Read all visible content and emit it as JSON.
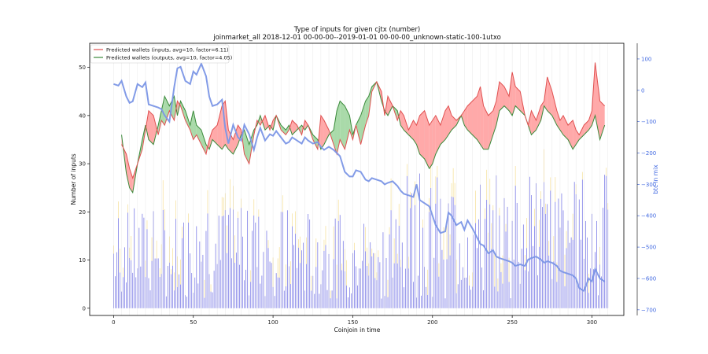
{
  "chart_data": {
    "type": "line",
    "title": "Type of inputs for given cjtx (number)",
    "subtitle": "joinmarket_all 2018-12-01 00-00-00--2019-01-01 00-00-00_unknown-static-100-1utxo",
    "xlabel": "Coinjoin in time",
    "ylabel": "Number of inputs",
    "y2label": "btc in mix",
    "xlim": [
      -15,
      320
    ],
    "ylim": [
      -1.5,
      55
    ],
    "y2lim": [
      -718,
      150
    ],
    "xticks": [
      "0",
      "50",
      "100",
      "150",
      "200",
      "250",
      "300"
    ],
    "yticks": [
      "0",
      "10",
      "20",
      "30",
      "40",
      "50"
    ],
    "y2ticks": [
      "100",
      "0",
      "−100",
      "−200",
      "−300",
      "−400",
      "−500",
      "−600",
      "−700"
    ],
    "legend_position": "top-left",
    "grid": "vertical lines at coinjoin dates",
    "colors": {
      "inputs_fill": "#ff9a9a",
      "inputs_line": "#e05050",
      "outputs_fill": "#9ad49a",
      "outputs_line": "#3a8a3a",
      "btc_line": "#7b96e6",
      "bars": "#3b3bd9",
      "bars_secondary": "#f3d77a",
      "right_axis": "#4169e1"
    },
    "series": [
      {
        "name": "Predicted wallets (inputs, avg=10, factor=6.11)",
        "x": [
          5,
          8,
          10,
          12,
          15,
          18,
          20,
          22,
          25,
          28,
          30,
          32,
          35,
          38,
          40,
          42,
          45,
          48,
          50,
          52,
          55,
          58,
          60,
          62,
          65,
          68,
          70,
          72,
          75,
          78,
          80,
          82,
          85,
          88,
          90,
          92,
          95,
          98,
          100,
          102,
          105,
          108,
          110,
          112,
          115,
          118,
          120,
          122,
          125,
          128,
          130,
          132,
          135,
          138,
          140,
          142,
          145,
          148,
          150,
          152,
          155,
          158,
          160,
          162,
          165,
          168,
          170,
          172,
          175,
          178,
          180,
          182,
          185,
          188,
          190,
          192,
          195,
          198,
          200,
          202,
          205,
          208,
          210,
          212,
          215,
          218,
          220,
          222,
          225,
          228,
          230,
          232,
          235,
          238,
          240,
          242,
          245,
          248,
          250,
          252,
          255,
          258,
          260,
          262,
          265,
          268,
          270,
          272,
          275,
          278,
          280,
          282,
          285,
          288,
          290,
          292,
          295,
          298,
          300,
          302,
          305,
          308
        ],
        "values": [
          34,
          32,
          29,
          27,
          30,
          33,
          37,
          41,
          40,
          36,
          39,
          38,
          41,
          39,
          43,
          42,
          39,
          37,
          35,
          36,
          34,
          32,
          35,
          37,
          38,
          42,
          43,
          37,
          35,
          38,
          37,
          32,
          30,
          36,
          39,
          38,
          40,
          37,
          39,
          40,
          37,
          36,
          37,
          39,
          38,
          36,
          39,
          38,
          35,
          33,
          40,
          39,
          37,
          34,
          32,
          35,
          33,
          37,
          35,
          38,
          34,
          38,
          40,
          45,
          47,
          45,
          40,
          44,
          42,
          39,
          41,
          40,
          37,
          39,
          38,
          40,
          41,
          38,
          39,
          40,
          38,
          41,
          42,
          40,
          39,
          40,
          41,
          42,
          43,
          44,
          46,
          42,
          40,
          41,
          43,
          47,
          46,
          44,
          49,
          46,
          45,
          40,
          38,
          41,
          39,
          42,
          43,
          48,
          45,
          41,
          39,
          40,
          38,
          39,
          37,
          36,
          38,
          39,
          41,
          51,
          43,
          42
        ]
      },
      {
        "name": "Predicted wallets (outputs, avg=10, factor=4.05)",
        "x": [
          5,
          8,
          10,
          12,
          15,
          18,
          20,
          22,
          25,
          28,
          30,
          32,
          35,
          38,
          40,
          42,
          45,
          48,
          50,
          52,
          55,
          58,
          60,
          62,
          65,
          68,
          70,
          72,
          75,
          78,
          80,
          82,
          85,
          88,
          90,
          92,
          95,
          98,
          100,
          102,
          105,
          108,
          110,
          112,
          115,
          118,
          120,
          122,
          125,
          128,
          130,
          132,
          135,
          138,
          140,
          142,
          145,
          148,
          150,
          152,
          155,
          158,
          160,
          162,
          165,
          168,
          170,
          172,
          175,
          178,
          180,
          182,
          185,
          188,
          190,
          192,
          195,
          198,
          200,
          202,
          205,
          208,
          210,
          212,
          215,
          218,
          220,
          222,
          225,
          228,
          230,
          232,
          235,
          238,
          240,
          242,
          245,
          248,
          250,
          252,
          255,
          258,
          260,
          262,
          265,
          268,
          270,
          272,
          275,
          278,
          280,
          282,
          285,
          288,
          290,
          292,
          295,
          298,
          300,
          302,
          305,
          308
        ],
        "values": [
          36,
          28,
          25,
          24,
          30,
          35,
          38,
          35,
          34,
          38,
          41,
          44,
          42,
          44,
          40,
          43,
          41,
          38,
          41,
          38,
          37,
          34,
          33,
          35,
          34,
          33,
          34,
          33,
          32,
          34,
          36,
          37,
          34,
          37,
          38,
          40,
          37,
          38,
          37,
          40,
          38,
          37,
          38,
          36,
          37,
          38,
          37,
          38,
          36,
          35,
          33,
          34,
          36,
          37,
          41,
          43,
          42,
          40,
          36,
          38,
          40,
          43,
          44,
          46,
          47,
          43,
          41,
          40,
          42,
          41,
          38,
          37,
          36,
          35,
          34,
          32,
          31,
          29,
          30,
          32,
          34,
          35,
          36,
          37,
          38,
          40,
          38,
          37,
          36,
          35,
          34,
          33,
          33,
          36,
          38,
          41,
          42,
          41,
          40,
          42,
          41,
          40,
          38,
          36,
          37,
          39,
          42,
          41,
          40,
          38,
          37,
          36,
          35,
          33,
          34,
          35,
          36,
          37,
          38,
          40,
          35,
          38
        ]
      },
      {
        "name": "btc in mix",
        "axis": "right",
        "x": [
          0,
          3,
          5,
          8,
          10,
          12,
          15,
          18,
          20,
          22,
          25,
          28,
          30,
          32,
          35,
          38,
          40,
          42,
          45,
          48,
          50,
          52,
          55,
          58,
          60,
          62,
          65,
          68,
          70,
          72,
          75,
          78,
          80,
          82,
          85,
          88,
          90,
          92,
          95,
          98,
          100,
          102,
          105,
          108,
          110,
          112,
          115,
          118,
          120,
          122,
          125,
          128,
          130,
          132,
          135,
          138,
          140,
          142,
          145,
          148,
          150,
          152,
          155,
          158,
          160,
          162,
          165,
          168,
          170,
          172,
          175,
          178,
          180,
          182,
          185,
          188,
          190,
          192,
          195,
          198,
          200,
          202,
          205,
          208,
          210,
          212,
          215,
          218,
          220,
          222,
          225,
          228,
          230,
          232,
          235,
          238,
          240,
          242,
          245,
          248,
          250,
          252,
          255,
          258,
          260,
          262,
          265,
          268,
          270,
          272,
          275,
          278,
          280,
          282,
          285,
          288,
          290,
          292,
          295,
          298,
          300,
          302,
          305,
          308
        ],
        "values": [
          20,
          15,
          30,
          -20,
          -40,
          -35,
          20,
          10,
          25,
          -45,
          -50,
          -55,
          -60,
          -80,
          -100,
          10,
          70,
          75,
          30,
          20,
          60,
          50,
          85,
          45,
          -20,
          -50,
          -45,
          -30,
          -120,
          -170,
          -110,
          -150,
          -160,
          -110,
          -140,
          -190,
          -150,
          -120,
          -160,
          -140,
          -145,
          -130,
          -150,
          -170,
          -165,
          -150,
          -160,
          -170,
          -150,
          -160,
          -170,
          -165,
          -180,
          -190,
          -180,
          -190,
          -200,
          -210,
          -260,
          -275,
          -275,
          -255,
          -260,
          -285,
          -290,
          -280,
          -285,
          -290,
          -300,
          -295,
          -290,
          -305,
          -320,
          -330,
          -335,
          -340,
          -300,
          -350,
          -360,
          -370,
          -400,
          -430,
          -455,
          -450,
          -390,
          -400,
          -430,
          -420,
          -445,
          -415,
          -440,
          -470,
          -490,
          -495,
          -520,
          -510,
          -530,
          -535,
          -540,
          -545,
          -550,
          -560,
          -555,
          -560,
          -540,
          -535,
          -530,
          -540,
          -550,
          -545,
          -550,
          -560,
          -575,
          -580,
          -585,
          -590,
          -600,
          -630,
          -640,
          -600,
          -610,
          -570,
          -600,
          -610
        ]
      }
    ]
  }
}
